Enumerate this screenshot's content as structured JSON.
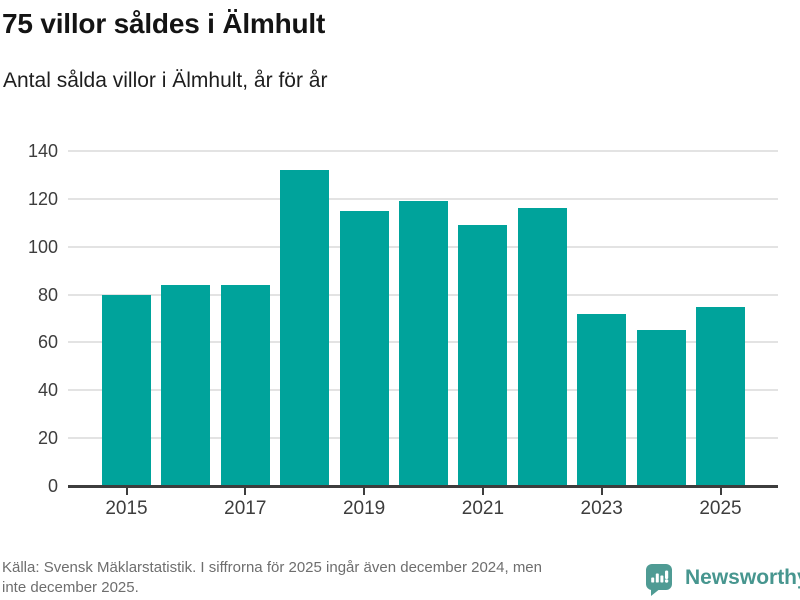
{
  "header": {
    "title": "75 villor såldes i Älmhult",
    "subtitle": "Antal sålda villor i Älmhult, år för år"
  },
  "chart_data": {
    "type": "bar",
    "title": "75 villor såldes i Älmhult",
    "subtitle": "Antal sålda villor i Älmhult, år för år",
    "categories": [
      "2015",
      "2016",
      "2017",
      "2018",
      "2019",
      "2020",
      "2021",
      "2022",
      "2023",
      "2024",
      "2025"
    ],
    "values": [
      80,
      84,
      84,
      132,
      115,
      119,
      109,
      116,
      72,
      65,
      75
    ],
    "x_tick_labels": [
      "2015",
      "2017",
      "2019",
      "2021",
      "2023",
      "2025"
    ],
    "y_ticks": [
      0,
      20,
      40,
      60,
      80,
      100,
      120,
      140
    ],
    "ylim": [
      0,
      140
    ],
    "xlabel": "",
    "ylabel": "",
    "grid": "horizontal",
    "legend": "none",
    "bar_color": "#00a39b"
  },
  "footer": {
    "lines": [
      "Källa: Svensk Mäklarstatistik. I siffrorna för 2025 ingår även december 2024, men",
      "inte december 2025."
    ],
    "brand": "Newsworthy"
  },
  "colors": {
    "bar": "#00a39b",
    "grid": "#e3e3e3",
    "axis_line": "#3d3d3d",
    "axis_text": "#3d3d3d",
    "title": "#141414",
    "subtitle": "#1e1e1e",
    "footer_text": "#6e6e6e",
    "brand_icon": "#4f9b94",
    "brand_text": "#47968f",
    "background": "#ffffff"
  }
}
